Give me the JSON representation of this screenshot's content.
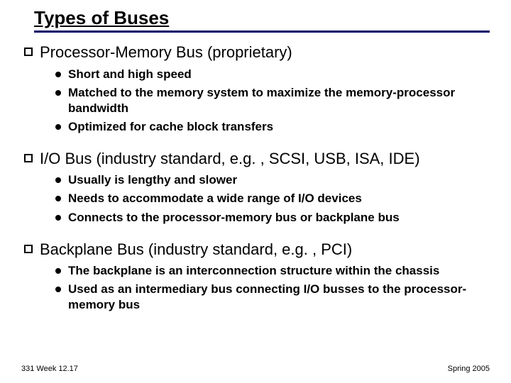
{
  "colors": {
    "rule": "#000066",
    "background": "#ffffff",
    "text": "#000000"
  },
  "title": "Types of Buses",
  "sections": [
    {
      "heading": "Processor-Memory Bus (proprietary)",
      "items": [
        "Short and high speed",
        "Matched to the memory system to maximize the memory-processor bandwidth",
        "Optimized for cache block transfers"
      ]
    },
    {
      "heading": "I/O Bus (industry standard, e.g. , SCSI, USB, ISA, IDE)",
      "items": [
        "Usually is lengthy and slower",
        "Needs to accommodate a wide range of I/O devices",
        "Connects to the processor-memory bus or backplane bus"
      ]
    },
    {
      "heading": "Backplane Bus (industry standard, e.g. , PCI)",
      "items": [
        "The backplane is an interconnection structure within the chassis",
        "Used as an intermediary bus connecting I/O busses to the processor-memory bus"
      ]
    }
  ],
  "footer": {
    "left": "331 Week 12.17",
    "right": "Spring 2005"
  },
  "typography": {
    "title_fontsize": 26,
    "heading_fontsize": 22,
    "item_fontsize": 17,
    "footer_fontsize": 11
  }
}
